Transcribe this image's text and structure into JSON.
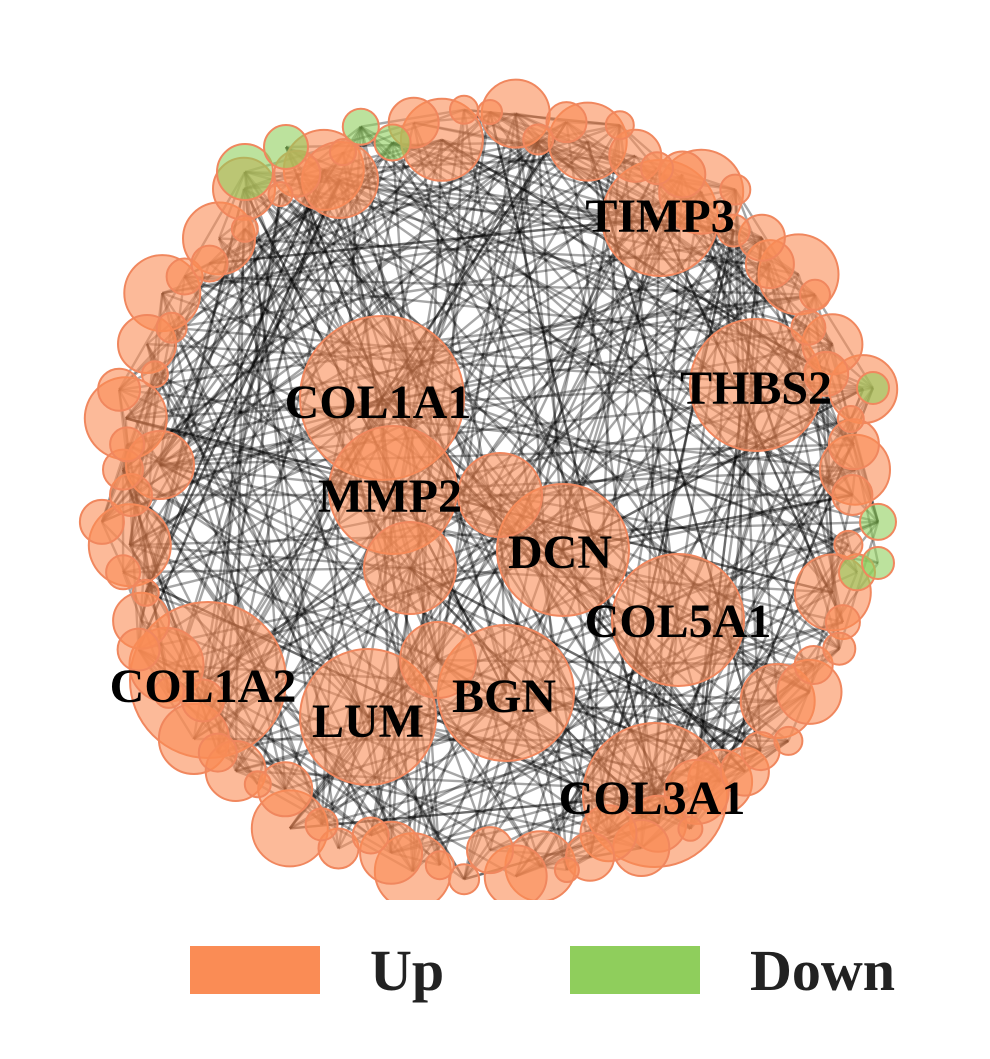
{
  "colors": {
    "up": "#fa8c55",
    "down": "#8fce5c",
    "edge": "#000000"
  },
  "hub_genes": [
    {
      "id": "COL1A1",
      "label": "COL1A1"
    },
    {
      "id": "MMP2",
      "label": "MMP2"
    },
    {
      "id": "DCN",
      "label": "DCN"
    },
    {
      "id": "TIMP3",
      "label": "TIMP3"
    },
    {
      "id": "THBS2",
      "label": "THBS2"
    },
    {
      "id": "COL5A1",
      "label": "COL5A1"
    },
    {
      "id": "COL1A2",
      "label": "COL1A2"
    },
    {
      "id": "LUM",
      "label": "LUM"
    },
    {
      "id": "BGN",
      "label": "BGN"
    },
    {
      "id": "COL3A1",
      "label": "COL3A1"
    }
  ],
  "legend": [
    {
      "key": "up",
      "label": "Up"
    },
    {
      "key": "down",
      "label": "Down"
    }
  ]
}
